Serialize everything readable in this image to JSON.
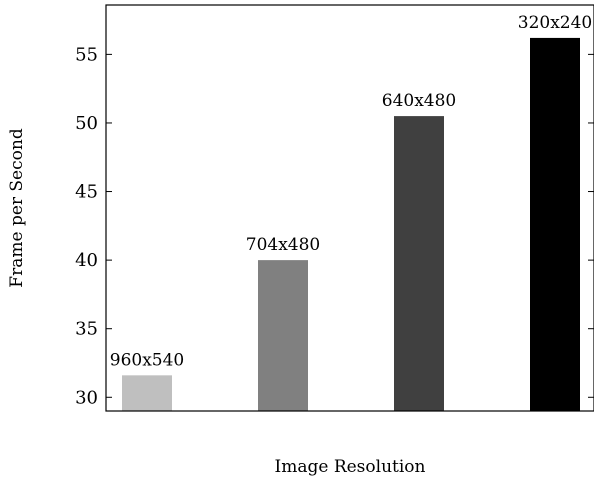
{
  "chart_data": {
    "type": "bar",
    "categories": [
      "960x540",
      "704x480",
      "640x480",
      "320x240"
    ],
    "values": [
      31.6,
      40.0,
      50.5,
      56.2
    ],
    "data_labels": [
      "960x540",
      "704x480",
      "640x480",
      "320x240"
    ],
    "bar_colors": [
      "#bfbfbf",
      "#808080",
      "#404040",
      "#000000"
    ],
    "xlabel": "Image Resolution",
    "ylabel": "Frame per Second",
    "ylim": [
      29,
      58.6
    ],
    "yticks": [
      30,
      35,
      40,
      45,
      50,
      55
    ],
    "grid": false,
    "legend": "none"
  }
}
